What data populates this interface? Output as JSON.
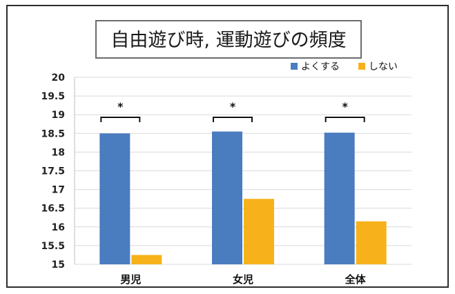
{
  "chart_data": {
    "type": "bar",
    "title": "自由遊び時, 運動遊びの頻度",
    "categories": [
      "男児",
      "女児",
      "全体"
    ],
    "series": [
      {
        "name": "よくする",
        "values": [
          18.5,
          18.55,
          18.52
        ],
        "color": "#4a7cc0"
      },
      {
        "name": "しない",
        "values": [
          15.25,
          16.75,
          16.15
        ],
        "color": "#f7b21b"
      }
    ],
    "ylim": [
      15,
      20
    ],
    "yticks": [
      "15",
      "15.5",
      "16",
      "16.5",
      "17",
      "17.5",
      "18",
      "18.5",
      "19",
      "19.5",
      "20"
    ],
    "xlabel": "",
    "ylabel": "",
    "grid": true,
    "legend": "top-right",
    "significance": [
      "*",
      "*",
      "*"
    ]
  }
}
